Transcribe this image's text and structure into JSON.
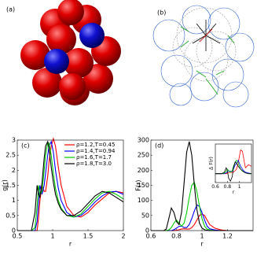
{
  "illustrations": [
    {
      "label": "(a)"
    },
    {
      "label": "(b)"
    }
  ],
  "chart_data": [
    {
      "type": "line",
      "label": "(c)",
      "xlabel": "r",
      "ylabel": "g(r)",
      "xlim": [
        0.5,
        2
      ],
      "xticks": [
        0.5,
        1,
        1.5,
        2
      ],
      "ylim": [
        0,
        3
      ],
      "yticks": [
        0,
        0.5,
        1,
        1.5,
        2,
        2.5,
        3
      ],
      "x": [
        0.5,
        0.7,
        0.75,
        0.78,
        0.8,
        0.82,
        0.85,
        0.88,
        0.9,
        0.93,
        0.95,
        0.98,
        1.01,
        1.04,
        1.08,
        1.12,
        1.2,
        1.3,
        1.4,
        1.5,
        1.6,
        1.7,
        1.8,
        1.9,
        2.0
      ],
      "series": [
        {
          "name": "ρ=1.2,T=0.45",
          "color": "#ff0000",
          "values": [
            0,
            0,
            0,
            0,
            0.4,
            1.0,
            1.5,
            1.3,
            1.3,
            1.8,
            2.3,
            2.8,
            3.05,
            2.8,
            2.1,
            1.5,
            0.8,
            0.5,
            0.45,
            0.6,
            0.85,
            1.05,
            1.25,
            1.3,
            1.25
          ]
        },
        {
          "name": "ρ=1.4,T=0.94",
          "color": "#0000ff",
          "values": [
            0,
            0,
            0,
            0.3,
            0.9,
            1.5,
            1.2,
            1.5,
            1.9,
            2.5,
            2.8,
            2.95,
            2.6,
            2.0,
            1.4,
            1.0,
            0.6,
            0.45,
            0.5,
            0.7,
            0.95,
            1.15,
            1.28,
            1.3,
            1.2
          ]
        },
        {
          "name": "ρ=1.6,T=1.7",
          "color": "#00cc00",
          "values": [
            0,
            0,
            0.1,
            0.8,
            1.5,
            1.2,
            1.3,
            2.0,
            2.5,
            2.9,
            2.9,
            2.5,
            1.9,
            1.4,
            1.0,
            0.75,
            0.5,
            0.45,
            0.55,
            0.8,
            1.05,
            1.25,
            1.3,
            1.2,
            1.05
          ]
        },
        {
          "name": "ρ=1.8,T=3.0",
          "color": "#000000",
          "values": [
            0,
            0,
            0.6,
            1.5,
            1.2,
            1.1,
            1.6,
            2.4,
            2.8,
            2.95,
            2.7,
            2.1,
            1.6,
            1.2,
            0.9,
            0.7,
            0.5,
            0.5,
            0.65,
            0.9,
            1.15,
            1.3,
            1.25,
            1.1,
            0.95
          ]
        }
      ]
    },
    {
      "type": "line",
      "label": "(d)",
      "xlabel": "r",
      "ylabel": "F(r)",
      "xlim": [
        0.6,
        1.4
      ],
      "xticks": [
        0.6,
        0.8,
        1,
        1.2
      ],
      "ylim": [
        0,
        300
      ],
      "yticks": [
        0,
        50,
        100,
        150,
        200,
        250,
        300
      ],
      "x": [
        0.6,
        0.7,
        0.72,
        0.74,
        0.76,
        0.78,
        0.8,
        0.82,
        0.84,
        0.86,
        0.88,
        0.9,
        0.92,
        0.94,
        0.96,
        0.98,
        1.0,
        1.02,
        1.04,
        1.06,
        1.1,
        1.15,
        1.2,
        1.3,
        1.4
      ],
      "series": [
        {
          "color": "#ff0000",
          "values": [
            0,
            0,
            0,
            0,
            0,
            0,
            1,
            3,
            5,
            6,
            5,
            5,
            10,
            20,
            35,
            50,
            55,
            50,
            35,
            20,
            8,
            2,
            0,
            0,
            0
          ]
        },
        {
          "color": "#0000ff",
          "values": [
            0,
            0,
            0,
            0,
            0,
            3,
            8,
            14,
            15,
            10,
            10,
            20,
            40,
            65,
            85,
            80,
            60,
            35,
            15,
            6,
            2,
            0,
            0,
            0,
            0
          ]
        },
        {
          "color": "#00cc00",
          "values": [
            0,
            0,
            0,
            2,
            10,
            25,
            35,
            25,
            15,
            25,
            60,
            110,
            150,
            160,
            130,
            80,
            40,
            15,
            5,
            2,
            0,
            0,
            0,
            0,
            0
          ]
        },
        {
          "color": "#000000",
          "values": [
            0,
            0,
            5,
            40,
            75,
            60,
            30,
            20,
            60,
            160,
            260,
            295,
            250,
            150,
            70,
            25,
            8,
            3,
            1,
            0,
            0,
            0,
            0,
            0,
            0
          ]
        }
      ]
    },
    {
      "type": "line",
      "xlabel": "r",
      "ylabel": "Δ F(r)",
      "xlim": [
        0.6,
        1.2
      ],
      "xticks": [
        0.6,
        0.8,
        1
      ],
      "ylim": [
        -30,
        100
      ],
      "x": [
        0.6,
        0.7,
        0.75,
        0.78,
        0.8,
        0.82,
        0.85,
        0.88,
        0.9,
        0.93,
        0.95,
        0.98,
        1.0,
        1.02,
        1.05,
        1.08,
        1.1,
        1.15,
        1.2
      ],
      "series": [
        {
          "color": "#ff0000",
          "values": [
            0,
            0,
            0,
            0,
            2,
            4,
            5,
            4,
            5,
            10,
            15,
            35,
            60,
            80,
            75,
            40,
            20,
            30,
            25
          ]
        },
        {
          "color": "#0000ff",
          "values": [
            0,
            0,
            0,
            3,
            6,
            10,
            8,
            8,
            15,
            30,
            35,
            45,
            35,
            25,
            15,
            8,
            5,
            2,
            0
          ]
        },
        {
          "color": "#00cc00",
          "values": [
            0,
            0,
            2,
            8,
            15,
            10,
            5,
            10,
            25,
            40,
            45,
            35,
            25,
            15,
            8,
            5,
            3,
            0,
            0
          ]
        },
        {
          "color": "#000000",
          "values": [
            0,
            0,
            5,
            20,
            10,
            -15,
            -25,
            -10,
            20,
            40,
            35,
            25,
            20,
            15,
            10,
            5,
            3,
            0,
            0
          ]
        }
      ]
    }
  ]
}
